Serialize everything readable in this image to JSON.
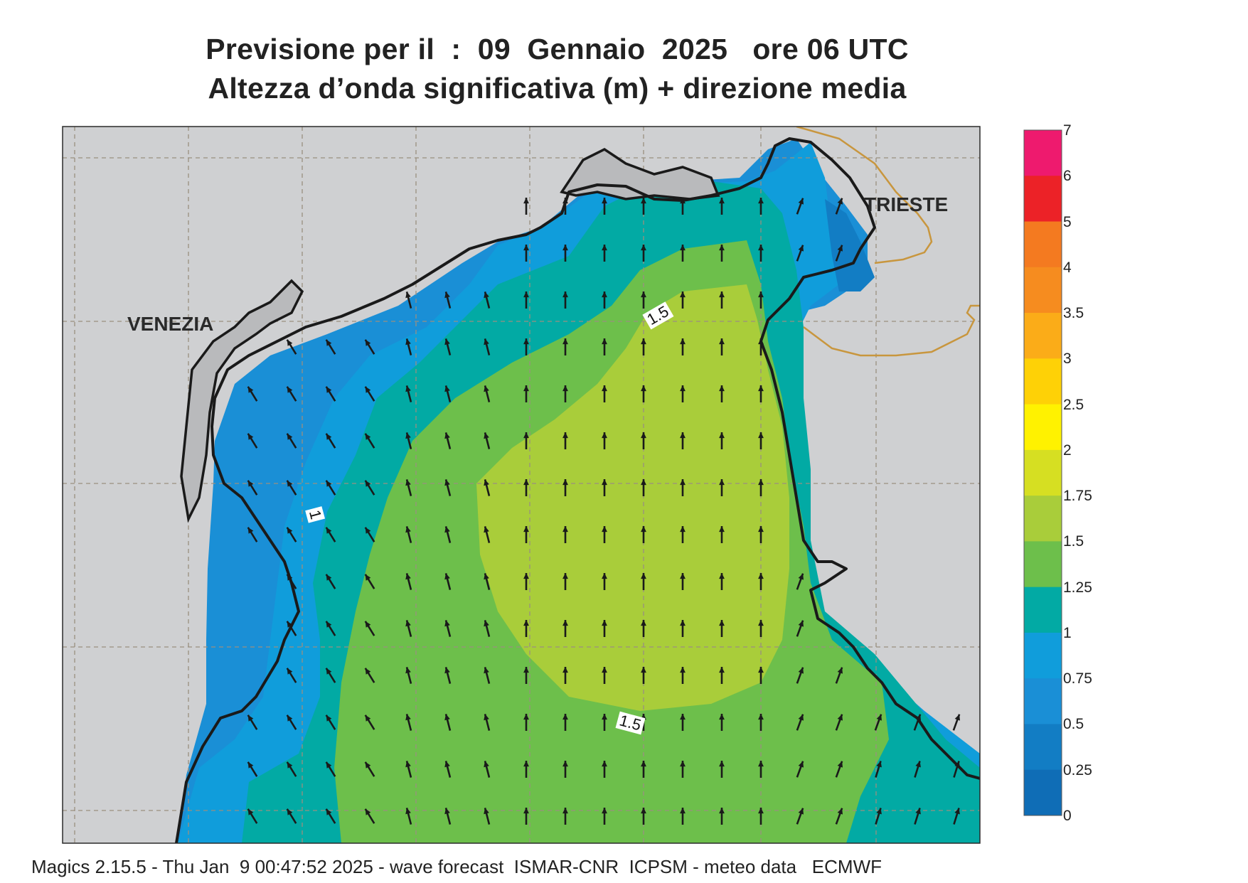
{
  "title": {
    "line1": "Previsione per il  :  09  Gennaio  2025   ore 06 UTC",
    "line2": "Altezza d’onda significativa (m) + direzione media"
  },
  "places": {
    "venezia": "VENEZIA",
    "trieste": "TRIESTE"
  },
  "contour_labels": [
    "1",
    "1.5",
    "1.5"
  ],
  "legend": {
    "ticks": [
      "7",
      "6",
      "5",
      "4",
      "3.5",
      "3",
      "2.5",
      "2",
      "1.75",
      "1.5",
      "1.25",
      "1",
      "0.75",
      "0.5",
      "0.25",
      "0"
    ],
    "colors": [
      "#ee1a6e",
      "#ec2227",
      "#f47a20",
      "#f68c1f",
      "#fbac18",
      "#fed106",
      "#fff200",
      "#d6df22",
      "#a9cd3a",
      "#6dbf4b",
      "#02aaa4",
      "#109ddb",
      "#1a8fd6",
      "#127dc4",
      "#0f6db6"
    ]
  },
  "colors": {
    "land": "#cfd0d2",
    "land_dark": "#b9babc",
    "coast": "#1a1a1a",
    "border": "#c8963e",
    "grid": "#9a8f80",
    "arrow": "#1a1a1a"
  },
  "wave_direction_arrows": "north / north-northwest",
  "footer": "Magics 2.15.5 - Thu Jan  9 00:47:52 2025 - wave forecast  ISMAR-CNR  ICPSM - meteo data   ECMWF"
}
